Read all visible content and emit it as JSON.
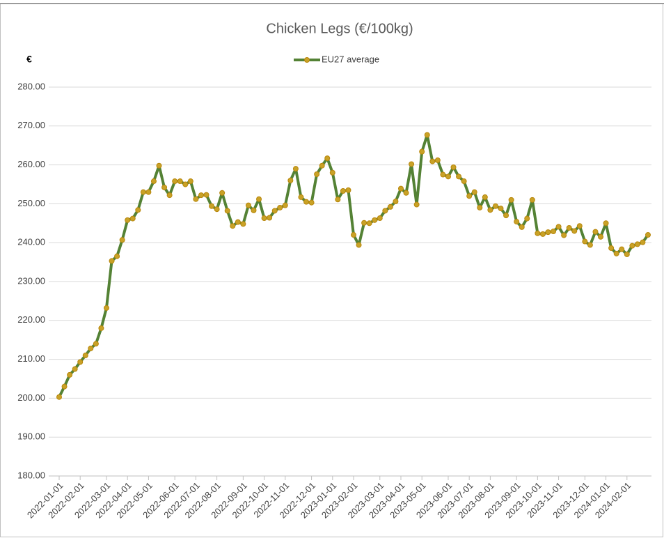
{
  "chart_data": {
    "type": "line",
    "title": "Chicken Legs  (€/100kg)",
    "y_label": "€",
    "categories": [
      "2022-01-01",
      null,
      null,
      null,
      "2022-02-01",
      null,
      null,
      null,
      null,
      "2022-03-01",
      null,
      null,
      null,
      "2022-04-01",
      null,
      null,
      null,
      "2022-05-01",
      null,
      null,
      null,
      null,
      "2022-06-01",
      null,
      null,
      null,
      "2022-07-01",
      null,
      null,
      null,
      "2022-08-01",
      null,
      null,
      null,
      null,
      "2022-09-01",
      null,
      null,
      null,
      "2022-10-01",
      null,
      null,
      null,
      "2022-11-01",
      null,
      null,
      null,
      null,
      "2022-12-01",
      null,
      null,
      null,
      "2023-01-01",
      null,
      null,
      null,
      "2023-02-01",
      null,
      null,
      null,
      null,
      "2023-03-01",
      null,
      null,
      null,
      "2023-04-01",
      null,
      null,
      null,
      "2023-05-01",
      null,
      null,
      null,
      null,
      "2023-06-01",
      null,
      null,
      null,
      "2023-07-01",
      null,
      null,
      null,
      "2023-08-01",
      null,
      null,
      null,
      null,
      "2023-09-01",
      null,
      null,
      null,
      "2023-10-01",
      null,
      null,
      null,
      "2023-11-01",
      null,
      null,
      null,
      null,
      "2023-12-01",
      null,
      null,
      null,
      "2024-01-01",
      null,
      null,
      null,
      "2024-02-01",
      null,
      null,
      null,
      null
    ],
    "series": [
      {
        "name": "EU27 average",
        "color": "#548235",
        "marker_color": "#c9a227",
        "values": [
          200.3,
          203,
          206,
          207.5,
          209.3,
          211,
          212.8,
          214,
          218,
          223.2,
          235.3,
          236.5,
          240.7,
          245.8,
          246.2,
          248.4,
          253,
          253,
          255.8,
          259.8,
          254.2,
          252.2,
          255.8,
          255.8,
          255,
          255.8,
          251.2,
          252.2,
          252.3,
          249.4,
          248.6,
          252.8,
          248.2,
          244.3,
          245.3,
          244.8,
          249.6,
          248.3,
          251.2,
          246.3,
          246.4,
          248.2,
          249,
          249.6,
          256,
          259,
          251.7,
          250.5,
          250.3,
          257.6,
          259.8,
          261.7,
          258,
          251.1,
          253.3,
          253.5,
          242,
          239.4,
          245.1,
          245,
          245.8,
          246.3,
          248.2,
          249.2,
          250.6,
          253.9,
          252.8,
          260.2,
          249.8,
          263.4,
          267.7,
          260.9,
          261.2,
          257.5,
          257,
          259.4,
          257,
          255.8,
          252,
          253,
          249,
          251.7,
          248.4,
          249.4,
          248.8,
          247,
          251,
          245.4,
          244,
          246.2,
          251,
          242.4,
          242.2,
          242.7,
          242.9,
          244.1,
          241.9,
          243.8,
          243,
          244.3,
          240.3,
          239.4,
          242.8,
          241.5,
          245,
          238.6,
          237.2,
          238.3,
          237,
          239.2,
          239.6,
          240.1,
          242
        ]
      }
    ],
    "ylim": [
      180,
      280
    ],
    "yticks": [
      {
        "value": 180,
        "label": "180.00"
      },
      {
        "value": 190,
        "label": "190.00"
      },
      {
        "value": 200,
        "label": "200.00"
      },
      {
        "value": 210,
        "label": "210.00"
      },
      {
        "value": 220,
        "label": "220.00"
      },
      {
        "value": 230,
        "label": "230.00"
      },
      {
        "value": 240,
        "label": "240.00"
      },
      {
        "value": 250,
        "label": "250.00"
      },
      {
        "value": 260,
        "label": "260.00"
      },
      {
        "value": 270,
        "label": "270.00"
      },
      {
        "value": 280,
        "label": "280.00"
      }
    ],
    "grid": true,
    "legend": "top"
  }
}
